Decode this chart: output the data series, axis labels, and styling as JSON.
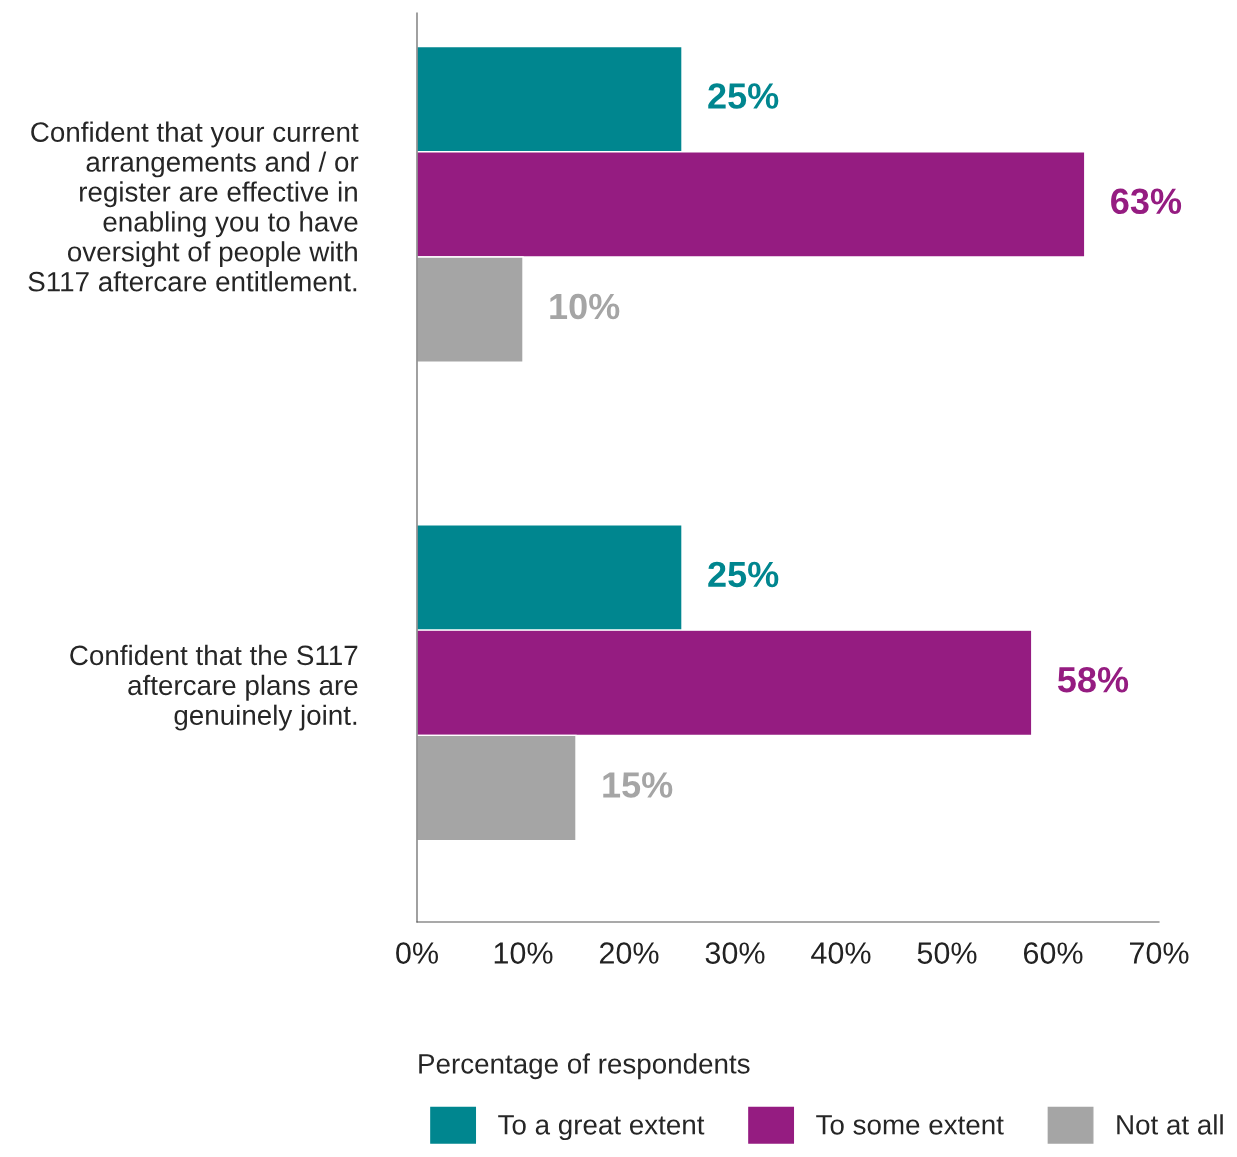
{
  "chart_data": {
    "type": "bar",
    "orientation": "horizontal",
    "categories": [
      "Confident that your current\narrangements and / or\nregister are effective in\nenabling you to have\noversight of people with\nS117 aftercare entitlement.",
      "Confident that the S117\naftercare plans are\ngenuinely joint."
    ],
    "series": [
      {
        "name": "To a great extent",
        "color": "#00868f",
        "values": [
          25,
          25
        ],
        "value_labels": [
          "25%",
          "25%"
        ]
      },
      {
        "name": "To some extent",
        "color": "#951c81",
        "values": [
          63,
          58
        ],
        "value_labels": [
          "63%",
          "58%"
        ]
      },
      {
        "name": "Not at all",
        "color": "#a5a5a5",
        "values": [
          10,
          15
        ],
        "value_labels": [
          "10%",
          "15%"
        ]
      }
    ],
    "xlabel": "Percentage of respondents",
    "xlim": [
      0,
      70
    ],
    "xticks": [
      {
        "value": 0,
        "label": "0%"
      },
      {
        "value": 10,
        "label": "10%"
      },
      {
        "value": 20,
        "label": "20%"
      },
      {
        "value": 30,
        "label": "30%"
      },
      {
        "value": 40,
        "label": "40%"
      },
      {
        "value": 50,
        "label": "50%"
      },
      {
        "value": 60,
        "label": "60%"
      },
      {
        "value": 70,
        "label": "70%"
      }
    ],
    "grid": false,
    "legend": "bottom"
  }
}
